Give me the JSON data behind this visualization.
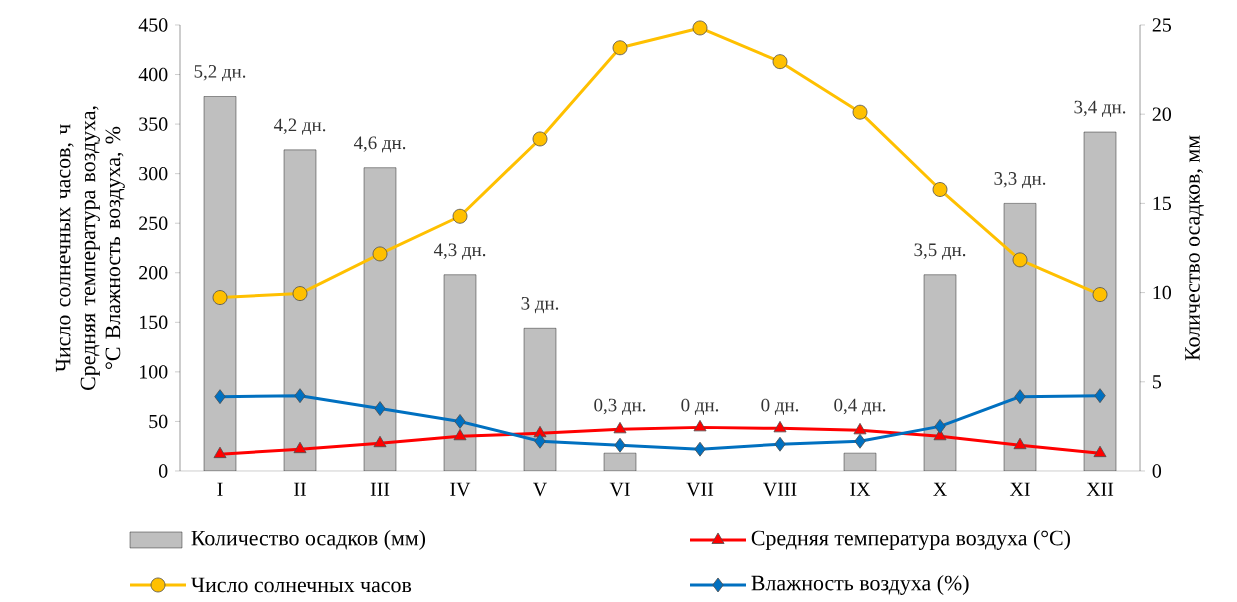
{
  "chart_data": {
    "type": "line",
    "categories": [
      "I",
      "II",
      "III",
      "IV",
      "V",
      "VI",
      "VII",
      "VIII",
      "IX",
      "X",
      "XI",
      "XII"
    ],
    "ylabel": "Число солнечных часов, ч Средняя температура воздуха, °C Влажность воздуха, %",
    "y2label": "Количество осадков, мм",
    "ylim": [
      0,
      450
    ],
    "yticks": [
      0,
      50,
      100,
      150,
      200,
      250,
      300,
      350,
      400,
      450
    ],
    "y2lim": [
      0,
      25
    ],
    "y2ticks": [
      0,
      5,
      10,
      15,
      20,
      25
    ],
    "grid": false,
    "legend": "bottom",
    "series": [
      {
        "name": "Количество осадков (мм)",
        "type": "bar",
        "axis": "y2",
        "color": "#bfbfbf",
        "values": [
          21,
          18,
          17,
          11,
          8,
          1,
          null,
          null,
          1,
          11,
          15,
          19
        ]
      },
      {
        "name": "Средняя температура воздуха (°C)",
        "marker": "triangle",
        "color": "#ff0000",
        "values": [
          17,
          22,
          28,
          35,
          38,
          42,
          44,
          43,
          41,
          35,
          26,
          18
        ]
      },
      {
        "name": "Число солнечных часов",
        "marker": "circle",
        "color": "#ffc000",
        "values": [
          175,
          179,
          219,
          257,
          335,
          427,
          447,
          413,
          362,
          284,
          213,
          178
        ]
      },
      {
        "name": "Влажность воздуха (%)",
        "marker": "diamond",
        "color": "#0070c0",
        "values": [
          75,
          76,
          63,
          50,
          30,
          26,
          22,
          27,
          30,
          45,
          75,
          76
        ]
      }
    ],
    "annotations": [
      "5,2 дн.",
      "4,2 дн.",
      "4,6 дн.",
      "4,3 дн.",
      "3 дн.",
      "0,3 дн.",
      "0 дн.",
      "0 дн.",
      "0,4 дн.",
      "3,5 дн.",
      "3,3 дн.",
      "3,4 дн."
    ]
  }
}
